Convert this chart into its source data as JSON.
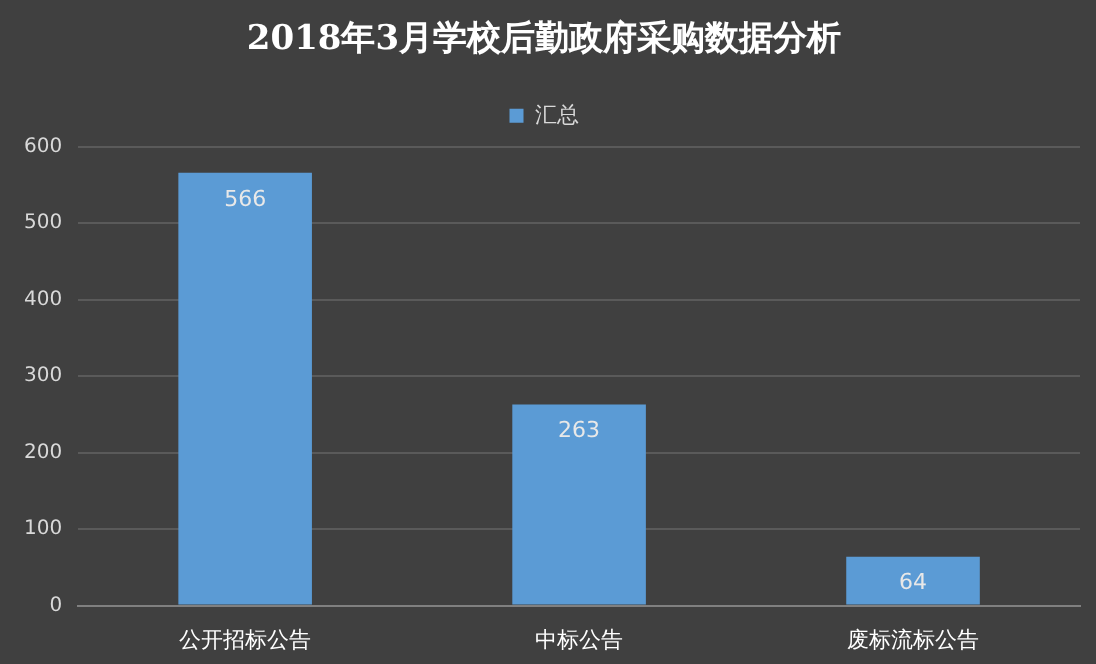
{
  "chart_data": {
    "type": "bar",
    "title": "2018年3月学校后勤政府采购数据分析",
    "categories": [
      "公开招标公告",
      "中标公告",
      "废标流标公告"
    ],
    "series": [
      {
        "name": "汇总",
        "color": "#5b9bd5",
        "values": [
          566,
          263,
          64
        ]
      }
    ],
    "ylim": [
      0,
      600
    ],
    "yticks": [
      0,
      100,
      200,
      300,
      400,
      500,
      600
    ],
    "grid": "y",
    "legend": "top",
    "data_labels": true
  }
}
